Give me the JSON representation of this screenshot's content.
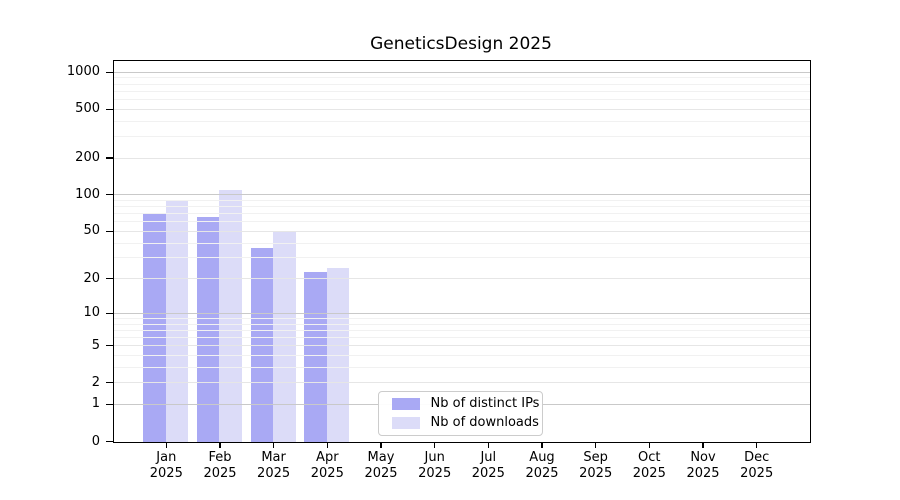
{
  "title": "GeneticsDesign 2025",
  "chart_data": {
    "type": "bar",
    "title": "GeneticsDesign 2025",
    "x_months": [
      "Jan",
      "Feb",
      "Mar",
      "Apr",
      "May",
      "Jun",
      "Jul",
      "Aug",
      "Sep",
      "Oct",
      "Nov",
      "Dec"
    ],
    "x_year": "2025",
    "series": [
      {
        "name": "Nb of distinct IPs",
        "color": "#a9a9f4",
        "values": [
          71,
          67,
          37,
          23,
          0,
          0,
          0,
          0,
          0,
          0,
          0,
          0
        ]
      },
      {
        "name": "Nb of downloads",
        "color": "#dcdcf8",
        "values": [
          91,
          110,
          50,
          25,
          0,
          0,
          0,
          0,
          0,
          0,
          0,
          0
        ]
      }
    ],
    "y_scale": "log1p",
    "y_axis_ticks": [
      0,
      1,
      2,
      5,
      10,
      20,
      50,
      100,
      200,
      500,
      1000
    ],
    "y_major_gridlines": [
      1,
      10,
      100,
      1000
    ],
    "ylim": [
      0,
      1250
    ],
    "grid": "both",
    "legend_position": "lower center"
  },
  "colors": {
    "bar_distinct_ips": "#a9a9f4",
    "bar_downloads": "#dcdcf8",
    "grid_major": "#c9c9c9",
    "grid_mid": "#e6e6e6",
    "grid_minor": "#f1f1f1",
    "axis": "#000000",
    "legend_border": "#cccccc"
  }
}
